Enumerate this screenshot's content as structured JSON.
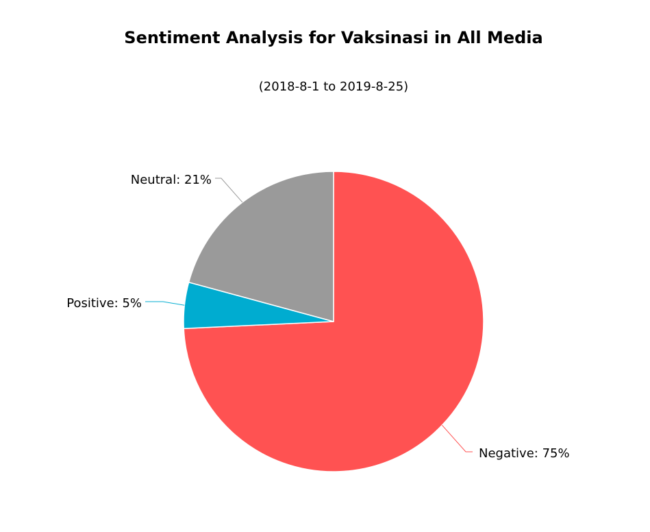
{
  "chart_data": {
    "type": "pie",
    "title": "Sentiment Analysis for Vaksinasi in All Media",
    "subtitle": "(2018-8-1 to 2019-8-25)",
    "slices": [
      {
        "name": "Negative",
        "value": 75,
        "label": "Negative: 75%",
        "color": "#ff5252"
      },
      {
        "name": "Positive",
        "value": 5,
        "label": "Positive: 5%",
        "color": "#00acd0"
      },
      {
        "name": "Neutral",
        "value": 21,
        "label": "Neutral: 21%",
        "color": "#9a9a9a"
      }
    ],
    "start_angle": "12 o'clock",
    "direction": "clockwise",
    "legend": "none"
  }
}
